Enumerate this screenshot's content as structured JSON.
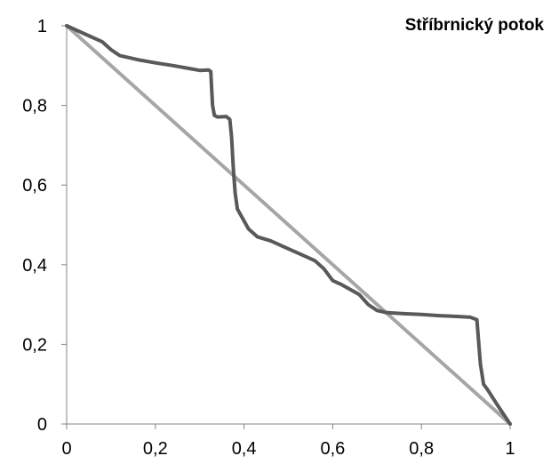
{
  "chart_data": {
    "type": "line",
    "title": "Stříbrnický potok",
    "xlabel": "",
    "ylabel": "",
    "xlim": [
      0,
      1
    ],
    "ylim": [
      0,
      1
    ],
    "x_ticks": [
      "0",
      "0,2",
      "0,4",
      "0,6",
      "0,8",
      "1"
    ],
    "y_ticks": [
      "0",
      "0,2",
      "0,4",
      "0,6",
      "0,8",
      "1"
    ],
    "grid": false,
    "legend": "none",
    "series": [
      {
        "color": "#595959",
        "points": [
          [
            0,
            1
          ],
          [
            0.04,
            0.98
          ],
          [
            0.08,
            0.96
          ],
          [
            0.1,
            0.94
          ],
          [
            0.12,
            0.925
          ],
          [
            0.16,
            0.915
          ],
          [
            0.2,
            0.907
          ],
          [
            0.24,
            0.9
          ],
          [
            0.28,
            0.892
          ],
          [
            0.3,
            0.888
          ],
          [
            0.32,
            0.889
          ],
          [
            0.325,
            0.885
          ],
          [
            0.327,
            0.84
          ],
          [
            0.329,
            0.8
          ],
          [
            0.333,
            0.775
          ],
          [
            0.34,
            0.771
          ],
          [
            0.36,
            0.772
          ],
          [
            0.368,
            0.765
          ],
          [
            0.372,
            0.72
          ],
          [
            0.376,
            0.64
          ],
          [
            0.38,
            0.58
          ],
          [
            0.385,
            0.54
          ],
          [
            0.395,
            0.52
          ],
          [
            0.41,
            0.49
          ],
          [
            0.43,
            0.47
          ],
          [
            0.46,
            0.46
          ],
          [
            0.5,
            0.44
          ],
          [
            0.54,
            0.42
          ],
          [
            0.56,
            0.41
          ],
          [
            0.58,
            0.39
          ],
          [
            0.6,
            0.36
          ],
          [
            0.62,
            0.35
          ],
          [
            0.66,
            0.325
          ],
          [
            0.68,
            0.3
          ],
          [
            0.7,
            0.285
          ],
          [
            0.72,
            0.28
          ],
          [
            0.76,
            0.277
          ],
          [
            0.8,
            0.275
          ],
          [
            0.84,
            0.272
          ],
          [
            0.88,
            0.27
          ],
          [
            0.91,
            0.268
          ],
          [
            0.925,
            0.262
          ],
          [
            0.928,
            0.22
          ],
          [
            0.933,
            0.15
          ],
          [
            0.94,
            0.1
          ],
          [
            0.95,
            0.085
          ],
          [
            0.97,
            0.05
          ],
          [
            1,
            0
          ]
        ]
      },
      {
        "color": "#a6a6a6",
        "points": [
          [
            0,
            1
          ],
          [
            1,
            0
          ]
        ]
      }
    ]
  }
}
